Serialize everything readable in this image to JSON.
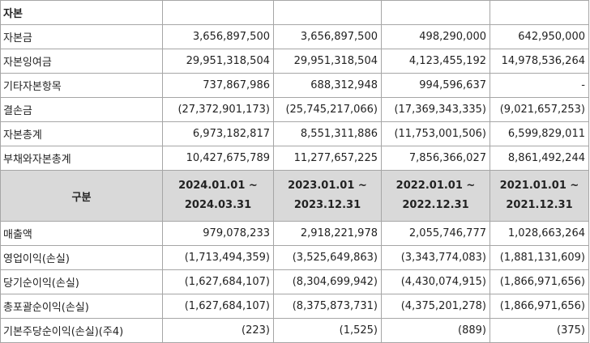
{
  "capital_section": {
    "title": "자본",
    "rows": [
      {
        "label": "자본금",
        "values": [
          "3,656,897,500",
          "3,656,897,500",
          "498,290,000",
          "642,950,000"
        ]
      },
      {
        "label": "자본잉여금",
        "values": [
          "29,951,318,504",
          "29,951,318,504",
          "4,123,455,192",
          "14,978,536,264"
        ]
      },
      {
        "label": "기타자본항목",
        "values": [
          "737,867,986",
          "688,312,948",
          "994,596,637",
          "-"
        ]
      },
      {
        "label": "결손금",
        "values": [
          "(27,372,901,173)",
          "(25,745,217,066)",
          "(17,369,343,335)",
          "(9,021,657,253)"
        ]
      },
      {
        "label": "자본총계",
        "values": [
          "6,973,182,817",
          "8,551,311,886",
          "(11,753,001,506)",
          "6,599,829,011"
        ]
      },
      {
        "label": "부채와자본총계",
        "values": [
          "10,427,675,789",
          "11,277,657,225",
          "7,856,366,027",
          "8,861,492,244"
        ]
      }
    ]
  },
  "header": {
    "gubun": "구분",
    "periods": [
      {
        "start": "2024.01.01 ~",
        "end": "2024.03.31"
      },
      {
        "start": "2023.01.01 ~",
        "end": "2023.12.31"
      },
      {
        "start": "2022.01.01 ~",
        "end": "2022.12.31"
      },
      {
        "start": "2021.01.01 ~",
        "end": "2021.12.31"
      }
    ]
  },
  "income_rows": [
    {
      "label": "매출액",
      "values": [
        "979,078,233",
        "2,918,221,978",
        "2,055,746,777",
        "1,028,663,264"
      ]
    },
    {
      "label": "영업이익(손실)",
      "values": [
        "(1,713,494,359)",
        "(3,525,649,863)",
        "(3,343,774,083)",
        "(1,881,131,609)"
      ]
    },
    {
      "label": "당기순이익(손실)",
      "values": [
        "(1,627,684,107)",
        "(8,304,699,942)",
        "(4,430,074,915)",
        "(1,866,971,656)"
      ]
    },
    {
      "label": "총포괄순이익(손실)",
      "values": [
        "(1,627,684,107)",
        "(8,375,873,731)",
        "(4,375,201,278)",
        "(1,866,971,656)"
      ]
    },
    {
      "label": "기본주당순이익(손실)(주4)",
      "values": [
        "(223)",
        "(1,525)",
        "(889)",
        "(375)"
      ]
    }
  ]
}
